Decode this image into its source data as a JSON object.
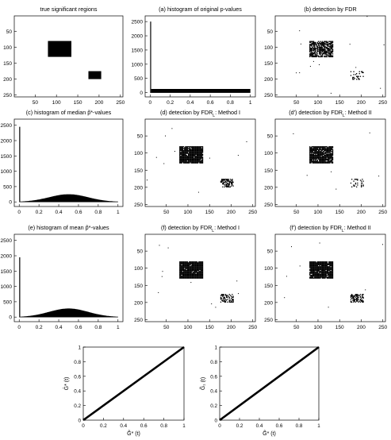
{
  "chart_data": [
    {
      "type": "heatmap",
      "title": "true significant regions",
      "xticks": [
        50,
        100,
        150,
        200,
        250
      ],
      "yticks": [
        50,
        100,
        150,
        200,
        250
      ],
      "xlim": [
        1,
        256
      ],
      "ylim": [
        1,
        256
      ],
      "y_reversed": true,
      "regions": [
        {
          "x": [
            80,
            135
          ],
          "y": [
            80,
            130
          ],
          "density": 1.0
        },
        {
          "x": [
            175,
            205
          ],
          "y": [
            175,
            200
          ],
          "density": 1.0
        }
      ],
      "noise_points": 0
    },
    {
      "type": "bar",
      "title": "(a)  histogram of original p-values",
      "xticks": [
        0,
        0.2,
        0.4,
        0.6,
        0.8,
        1
      ],
      "yticks": [
        0,
        500,
        1000,
        1500,
        2000,
        2500
      ],
      "xlim": [
        -0.05,
        1.05
      ],
      "ylim": [
        -150,
        2700
      ],
      "spike": {
        "x": 0.005,
        "value": 2500
      },
      "baseline": {
        "shape": "flat",
        "level": 130
      },
      "grid": false
    },
    {
      "type": "heatmap",
      "title": "(b)  detection by FDR",
      "xticks": [
        50,
        100,
        150,
        200,
        250
      ],
      "yticks": [
        50,
        100,
        150,
        200,
        250
      ],
      "xlim": [
        1,
        256
      ],
      "ylim": [
        1,
        256
      ],
      "y_reversed": true,
      "regions": [
        {
          "x": [
            80,
            135
          ],
          "y": [
            80,
            130
          ],
          "density": 0.75
        },
        {
          "x": [
            175,
            205
          ],
          "y": [
            175,
            200
          ],
          "density": 0.18
        }
      ],
      "noise_points": 14
    },
    {
      "type": "bar",
      "title": "(c)  histogram of median p̃*-values",
      "xticks": [
        0,
        0.2,
        0.4,
        0.6,
        0.8,
        1
      ],
      "yticks": [
        0,
        500,
        1000,
        1500,
        2000,
        2500
      ],
      "xlim": [
        -0.05,
        1.05
      ],
      "ylim": [
        -150,
        2700
      ],
      "spike": {
        "x": 0.005,
        "value": 2450
      },
      "baseline": {
        "shape": "bump",
        "peak": 250,
        "center": 0.5
      },
      "grid": false
    },
    {
      "type": "heatmap",
      "title": "(d)  detection by FDR",
      "title_sub": "L",
      "title_tail": ": Method I",
      "xticks": [
        50,
        100,
        150,
        200,
        250
      ],
      "yticks": [
        50,
        100,
        150,
        200,
        250
      ],
      "xlim": [
        1,
        256
      ],
      "ylim": [
        1,
        256
      ],
      "y_reversed": true,
      "regions": [
        {
          "x": [
            80,
            135
          ],
          "y": [
            80,
            130
          ],
          "density": 0.95
        },
        {
          "x": [
            175,
            205
          ],
          "y": [
            175,
            200
          ],
          "density": 0.55
        }
      ],
      "noise_points": 10
    },
    {
      "type": "heatmap",
      "title": "(d')  detection by FDR",
      "title_sub": "L",
      "title_tail": ": Method II",
      "xticks": [
        50,
        100,
        150,
        200,
        250
      ],
      "yticks": [
        50,
        100,
        150,
        200,
        250
      ],
      "xlim": [
        1,
        256
      ],
      "ylim": [
        1,
        256
      ],
      "y_reversed": true,
      "regions": [
        {
          "x": [
            80,
            135
          ],
          "y": [
            80,
            130
          ],
          "density": 0.9
        },
        {
          "x": [
            175,
            205
          ],
          "y": [
            175,
            200
          ],
          "density": 0.2
        }
      ],
      "noise_points": 6
    },
    {
      "type": "bar",
      "title": "(e)  histogram of mean p̃*-values",
      "xticks": [
        0,
        0.2,
        0.4,
        0.6,
        0.8,
        1
      ],
      "yticks": [
        0,
        500,
        1000,
        1500,
        2000,
        2500
      ],
      "xlim": [
        -0.05,
        1.05
      ],
      "ylim": [
        -150,
        2700
      ],
      "spike": {
        "x": 0.005,
        "value": 1950
      },
      "baseline": {
        "shape": "bump",
        "peak": 280,
        "center": 0.5
      },
      "grid": false
    },
    {
      "type": "heatmap",
      "title": "(f)  detection by FDR",
      "title_sub": "L",
      "title_tail": ": Method I",
      "xticks": [
        50,
        100,
        150,
        200,
        250
      ],
      "yticks": [
        50,
        100,
        150,
        200,
        250
      ],
      "xlim": [
        1,
        256
      ],
      "ylim": [
        1,
        256
      ],
      "y_reversed": true,
      "regions": [
        {
          "x": [
            80,
            135
          ],
          "y": [
            80,
            130
          ],
          "density": 0.95
        },
        {
          "x": [
            175,
            205
          ],
          "y": [
            175,
            200
          ],
          "density": 0.5
        }
      ],
      "noise_points": 10
    },
    {
      "type": "heatmap",
      "title": "(f')  detection by FDR",
      "title_sub": "L",
      "title_tail": ": Method II",
      "xticks": [
        50,
        100,
        150,
        200,
        250
      ],
      "yticks": [
        50,
        100,
        150,
        200,
        250
      ],
      "xlim": [
        1,
        256
      ],
      "ylim": [
        1,
        256
      ],
      "y_reversed": true,
      "regions": [
        {
          "x": [
            80,
            135
          ],
          "y": [
            80,
            130
          ],
          "density": 0.95
        },
        {
          "x": [
            175,
            205
          ],
          "y": [
            175,
            200
          ],
          "density": 0.5
        }
      ],
      "noise_points": 8
    },
    {
      "type": "line",
      "xlabel": "G̃* (t)",
      "ylabel": "Ĝ* (t)",
      "xticks": [
        0,
        0.2,
        0.4,
        0.6,
        0.8,
        1
      ],
      "yticks": [
        0,
        0.2,
        0.4,
        0.6,
        0.8,
        1
      ],
      "xlim": [
        0,
        1
      ],
      "ylim": [
        0,
        1
      ],
      "x": [
        0,
        1
      ],
      "y": [
        0,
        1
      ]
    },
    {
      "type": "line",
      "xlabel": "G̃* (t)",
      "ylabel": "G̃₁ (t)",
      "xticks": [
        0,
        0.2,
        0.4,
        0.6,
        0.8,
        1
      ],
      "yticks": [
        0,
        0.2,
        0.4,
        0.6,
        0.8,
        1
      ],
      "xlim": [
        0,
        1
      ],
      "ylim": [
        0,
        1
      ],
      "x": [
        0,
        1
      ],
      "y": [
        0,
        1
      ]
    }
  ]
}
